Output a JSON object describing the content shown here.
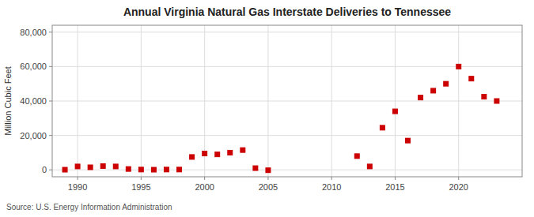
{
  "chart_data": {
    "type": "scatter",
    "title": "Annual Virginia Natural Gas Interstate Deliveries to Tennessee",
    "y_label": "Million Cubic Feet",
    "source": "Source: U.S. Energy Information Administration",
    "x": [
      1989,
      1990,
      1991,
      1992,
      1993,
      1994,
      1995,
      1996,
      1997,
      1998,
      1999,
      2000,
      2001,
      2002,
      2003,
      2004,
      2005,
      2012,
      2013,
      2014,
      2015,
      2016,
      2017,
      2018,
      2019,
      2020,
      2021,
      2022,
      2023
    ],
    "values": [
      100,
      2000,
      1500,
      2200,
      2000,
      500,
      200,
      100,
      200,
      200,
      7500,
      9500,
      9000,
      10000,
      11500,
      1000,
      -200,
      8000,
      2000,
      24500,
      34000,
      17000,
      42000,
      46000,
      50000,
      60000,
      53000,
      42500,
      40000
    ],
    "color": "#cc0000",
    "marker": "square",
    "xlim": [
      1988,
      2025
    ],
    "ylim": [
      -4000,
      84000
    ],
    "xticks": [
      1990,
      1995,
      2000,
      2005,
      2010,
      2015,
      2020
    ],
    "yticks": [
      0,
      {
        "value": 20000,
        "label": "20,000"
      },
      {
        "value": 40000,
        "label": "40,000"
      },
      {
        "value": 60000,
        "label": "60,000"
      },
      {
        "value": 80000,
        "label": "80,000"
      }
    ],
    "grid": true
  }
}
